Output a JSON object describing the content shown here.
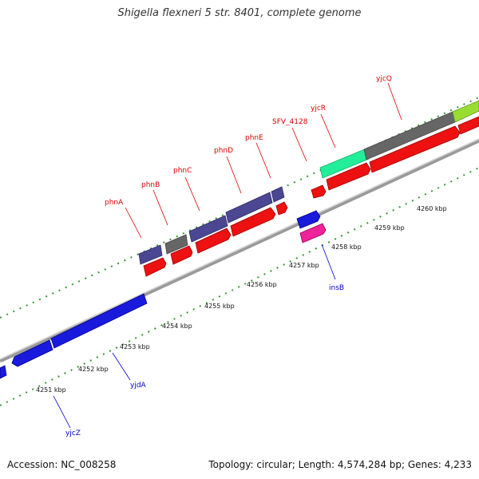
{
  "title": "Shigella flexneri 5 str. 8401, complete genome",
  "footer": {
    "accession": "Accession: NC_008258",
    "stats": "Topology: circular; Length: 4,574,284 bp; Genes: 4,233"
  },
  "colors": {
    "forward_label": "#dd0000",
    "reverse_label": "#0000cc",
    "backbone": "#999999",
    "tick": "#339933"
  },
  "scale_labels": [
    "4251 kbp",
    "4252 kbp",
    "4253 kbp",
    "4254 kbp",
    "4255 kbp",
    "4256 kbp",
    "4257 kbp",
    "4258 kbp",
    "4259 kbp",
    "4260 kbp"
  ],
  "forward_genes": [
    "phnA",
    "phnB",
    "phnC",
    "phnD",
    "phnE",
    "SFV_4128",
    "yjcR",
    "yjcQ"
  ],
  "reverse_genes": [
    "insB",
    "yjdA",
    "yjcZ"
  ]
}
